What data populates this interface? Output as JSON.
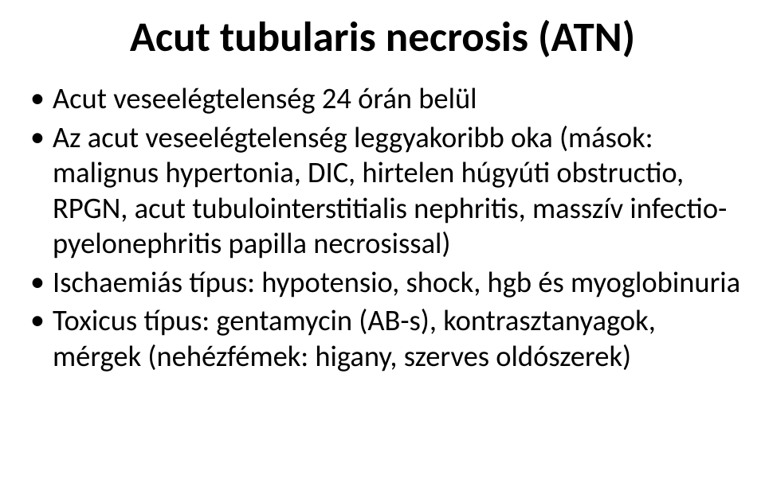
{
  "title": "Acut tubularis necrosis (ATN)",
  "bullets": [
    "Acut veseelégtelenség 24 órán belül",
    "Az acut veseelégtelenség leggyakoribb oka (mások: malignus hypertonia, DIC, hirtelen húgyúti obstructio, RPGN, acut tubulointerstitialis nephritis, masszív infectio-pyelonephritis papilla necrosissal)",
    "Ischaemiás típus: hypotensio, shock, hgb és myoglobinuria",
    "Toxicus típus: gentamycin (AB-s), kontrasztanyagok, mérgek (nehézfémek: higany, szerves oldószerek)"
  ],
  "colors": {
    "background": "#ffffff",
    "text": "#000000"
  },
  "typography": {
    "title_fontsize_pt": 40,
    "body_fontsize_pt": 27,
    "font_family": "Calibri"
  }
}
